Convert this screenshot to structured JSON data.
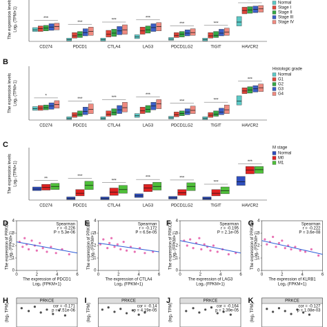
{
  "chart_data": [
    {
      "type": "box",
      "panel": "A",
      "y_label": "The expression levels",
      "y_label2": "Log₂ (TPM+1)",
      "categories": [
        "CD274",
        "PDCD1",
        "CTLA4",
        "LAG3",
        "PDCD1LG2",
        "TIGIT",
        "HAVCR2"
      ],
      "significance": [
        "***",
        "***",
        "***",
        "***",
        "***",
        "***",
        "***"
      ],
      "ylim": [
        0,
        8
      ],
      "series": [
        {
          "name": "Normal",
          "color": "#5cc9c6",
          "values": [
            2.1,
            0.3,
            0.3,
            0.8,
            0.4,
            0.3,
            3.5
          ],
          "q1": [
            1.8,
            0.1,
            0.1,
            0.5,
            0.2,
            0.1,
            2.8
          ],
          "q3": [
            2.5,
            0.6,
            0.6,
            1.2,
            0.7,
            0.6,
            4.5
          ]
        },
        {
          "name": "Stage I",
          "color": "#e0463a",
          "values": [
            2.3,
            1.0,
            1.3,
            1.9,
            1.1,
            1.0,
            5.6
          ],
          "q1": [
            1.8,
            0.6,
            0.8,
            1.3,
            0.7,
            0.6,
            5.0
          ],
          "q3": [
            2.8,
            1.6,
            2.0,
            2.6,
            1.6,
            1.6,
            6.2
          ]
        },
        {
          "name": "Stage II",
          "color": "#35a845",
          "values": [
            2.4,
            1.2,
            1.5,
            2.1,
            1.3,
            1.1,
            5.7
          ],
          "q1": [
            1.9,
            0.7,
            0.9,
            1.5,
            0.8,
            0.7,
            5.1
          ],
          "q3": [
            2.9,
            1.8,
            2.2,
            2.8,
            1.8,
            1.8,
            6.3
          ]
        },
        {
          "name": "Stage III",
          "color": "#3b5fc8",
          "values": [
            2.6,
            1.6,
            1.9,
            2.5,
            1.5,
            1.5,
            5.8
          ],
          "q1": [
            2.0,
            1.0,
            1.2,
            1.8,
            1.0,
            1.0,
            5.2
          ],
          "q3": [
            3.2,
            2.3,
            2.7,
            3.2,
            2.1,
            2.2,
            6.4
          ]
        },
        {
          "name": "Stage IV",
          "color": "#ef8a80",
          "values": [
            2.7,
            1.8,
            2.1,
            2.7,
            1.6,
            1.7,
            5.9
          ],
          "q1": [
            2.1,
            1.1,
            1.3,
            1.9,
            1.1,
            1.1,
            5.3
          ],
          "q3": [
            3.3,
            2.6,
            3.0,
            3.4,
            2.3,
            2.4,
            6.5
          ]
        }
      ]
    },
    {
      "type": "box",
      "panel": "B",
      "y_label": "The expression levels",
      "y_label2": "Log₂ (TPM+1)",
      "legend_title": "Histologic grade",
      "categories": [
        "CD274",
        "PDCD1",
        "CTLA4",
        "LAG3",
        "PDCD1LG2",
        "TIGIT",
        "HAVCR2"
      ],
      "significance": [
        "*",
        "***",
        "***",
        "***",
        "***",
        "***",
        "***"
      ],
      "ylim": [
        0,
        10
      ],
      "series": [
        {
          "name": "Normal",
          "color": "#5cc9c6",
          "values": [
            2.1,
            0.3,
            0.3,
            0.8,
            0.4,
            0.3,
            3.5
          ],
          "q1": [
            1.8,
            0.1,
            0.1,
            0.5,
            0.2,
            0.1,
            2.8
          ],
          "q3": [
            2.5,
            0.6,
            0.6,
            1.2,
            0.7,
            0.6,
            4.5
          ]
        },
        {
          "name": "G1",
          "color": "#e0463a",
          "values": [
            2.2,
            0.9,
            1.1,
            1.7,
            1.0,
            0.9,
            5.4
          ],
          "q1": [
            1.8,
            0.5,
            0.7,
            1.2,
            0.6,
            0.5,
            4.9
          ],
          "q3": [
            2.7,
            1.4,
            1.7,
            2.4,
            1.5,
            1.4,
            6.0
          ]
        },
        {
          "name": "G2",
          "color": "#35a845",
          "values": [
            2.3,
            1.1,
            1.4,
            2.0,
            1.2,
            1.1,
            5.6
          ],
          "q1": [
            1.9,
            0.7,
            0.9,
            1.4,
            0.8,
            0.7,
            5.0
          ],
          "q3": [
            2.8,
            1.7,
            2.1,
            2.7,
            1.7,
            1.7,
            6.2
          ]
        },
        {
          "name": "G3",
          "color": "#3b5fc8",
          "values": [
            2.6,
            1.6,
            1.9,
            2.6,
            1.5,
            1.5,
            5.8
          ],
          "q1": [
            2.0,
            1.0,
            1.2,
            1.9,
            1.0,
            1.0,
            5.2
          ],
          "q3": [
            3.2,
            2.4,
            2.7,
            3.3,
            2.1,
            2.2,
            6.4
          ]
        },
        {
          "name": "G4",
          "color": "#ef8a80",
          "values": [
            2.9,
            2.0,
            2.3,
            3.0,
            1.8,
            1.9,
            6.0
          ],
          "q1": [
            2.2,
            1.2,
            1.5,
            2.1,
            1.2,
            1.2,
            5.3
          ],
          "q3": [
            3.6,
            3.0,
            3.3,
            3.8,
            2.6,
            2.8,
            6.7
          ]
        }
      ]
    },
    {
      "type": "box",
      "panel": "C",
      "y_label": "The expression levels",
      "y_label2": "Log₂ (TPM+1)",
      "legend_title": "M stage",
      "categories": [
        "CD274",
        "PDCD1",
        "CTLA4",
        "LAG3",
        "PDCD1LG2",
        "TIGIT",
        "HAVCR2"
      ],
      "significance": [
        "**",
        "***",
        "***",
        "***",
        "***",
        "***",
        "***"
      ],
      "ylim": [
        0,
        10
      ],
      "series": [
        {
          "name": "Normal",
          "color": "#2f4fbf",
          "values": [
            2.1,
            0.3,
            0.3,
            0.8,
            0.4,
            0.3,
            3.5
          ],
          "q1": [
            1.8,
            0.1,
            0.1,
            0.5,
            0.2,
            0.1,
            2.8
          ],
          "q3": [
            2.5,
            0.6,
            0.6,
            1.2,
            0.7,
            0.6,
            4.5
          ]
        },
        {
          "name": "M0",
          "color": "#e02222",
          "values": [
            2.4,
            1.3,
            1.5,
            2.3,
            1.4,
            1.3,
            5.7
          ],
          "q1": [
            1.9,
            0.8,
            0.9,
            1.6,
            0.9,
            0.8,
            5.0
          ],
          "q3": [
            3.0,
            2.0,
            2.3,
            3.0,
            2.0,
            2.0,
            6.4
          ]
        },
        {
          "name": "M1",
          "color": "#4fbf3a",
          "values": [
            2.6,
            2.8,
            2.0,
            2.6,
            2.6,
            1.8,
            5.8
          ],
          "q1": [
            2.0,
            2.0,
            1.3,
            1.9,
            1.8,
            1.2,
            5.1
          ],
          "q3": [
            3.2,
            3.6,
            2.8,
            3.4,
            3.3,
            2.5,
            6.4
          ]
        }
      ]
    },
    {
      "type": "scatter",
      "panel": "D",
      "stats": [
        "Spearman",
        "r = -0.226",
        "P = 5.3e-06"
      ],
      "x_label": "The expression of PDCD1",
      "x_label2": "Log₂ (FPKM+1)",
      "y_label": "The expression of PRKCE",
      "y_label2": "Log₂ (FPKM+1)",
      "xlim": [
        0,
        6
      ],
      "xticks": [
        0,
        2,
        4,
        6
      ],
      "ylim": [
        0,
        4
      ],
      "yticks": [
        0,
        1,
        2,
        3,
        4
      ],
      "color": "#e0429a",
      "x": [
        0.3,
        0.6,
        0.8,
        1.0,
        1.2,
        1.5,
        1.8,
        2.0,
        2.3,
        2.6,
        3.0,
        3.4,
        3.9,
        4.5,
        5.2
      ],
      "y": [
        2.3,
        1.9,
        2.6,
        2.1,
        1.7,
        2.4,
        2.0,
        1.6,
        2.2,
        1.8,
        1.5,
        1.9,
        1.4,
        1.7,
        1.3
      ],
      "fit": {
        "x": [
          0,
          6
        ],
        "y": [
          2.3,
          1.4
        ]
      }
    },
    {
      "type": "scatter",
      "panel": "E",
      "stats": [
        "Spearman",
        "r = -0.172",
        "P = 6.5e-05"
      ],
      "x_label": "The expression of CTLA4",
      "x_label2": "Log₂ (FPKM+1)",
      "y_label": "The expression of PRKCE",
      "y_label2": "Log₂ (FPKM+1)",
      "xlim": [
        0,
        6
      ],
      "xticks": [
        0,
        2,
        4,
        6
      ],
      "ylim": [
        0,
        4
      ],
      "yticks": [
        0,
        1,
        2,
        3,
        4
      ],
      "color": "#e0429a",
      "x": [
        0.2,
        0.5,
        0.9,
        1.1,
        1.3,
        1.6,
        1.9,
        2.2,
        2.5,
        2.8,
        3.2,
        3.6,
        4.1,
        4.6,
        5.4
      ],
      "y": [
        2.1,
        2.5,
        1.8,
        2.2,
        2.6,
        1.9,
        2.1,
        1.7,
        2.3,
        1.6,
        1.9,
        1.5,
        1.8,
        1.4,
        1.5
      ],
      "fit": {
        "x": [
          0,
          6
        ],
        "y": [
          2.2,
          1.5
        ]
      }
    },
    {
      "type": "scatter",
      "panel": "F",
      "stats": [
        "Spearman",
        "r = -0.195",
        "P = 2.1e-05"
      ],
      "x_label": "The expression of LAG3",
      "x_label2": "Log₂ (FPKM+1)",
      "y_label": "The expression of PRKCE",
      "y_label2": "Log₂ (FPKM+1)",
      "xlim": [
        0,
        6
      ],
      "xticks": [
        0,
        2,
        4,
        6
      ],
      "ylim": [
        0,
        4
      ],
      "yticks": [
        0,
        1,
        2,
        3,
        4
      ],
      "color": "#e0429a",
      "x": [
        0.4,
        0.7,
        1.0,
        1.3,
        1.6,
        1.9,
        2.1,
        2.4,
        2.7,
        3.0,
        3.3,
        3.7,
        4.2,
        4.8,
        5.5
      ],
      "y": [
        2.4,
        2.0,
        2.5,
        1.8,
        2.2,
        2.6,
        1.7,
        2.1,
        1.9,
        1.6,
        2.0,
        1.5,
        1.7,
        1.3,
        1.4
      ],
      "fit": {
        "x": [
          0,
          6
        ],
        "y": [
          2.4,
          1.4
        ]
      }
    },
    {
      "type": "scatter",
      "panel": "G",
      "stats": [
        "Spearman",
        "r = -0.222",
        "P = 3.6e-08"
      ],
      "x_label": "The expression of KLRB1",
      "x_label2": "Log₂ (FPKM+1)",
      "y_label": "The expression of PRKCE",
      "y_label2": "Log₂ (FPKM+1)",
      "xlim": [
        0,
        6
      ],
      "xticks": [
        0,
        2,
        4,
        6
      ],
      "ylim": [
        0,
        4
      ],
      "yticks": [
        0,
        1,
        2,
        3,
        4
      ],
      "color": "#e0429a",
      "x": [
        0.3,
        0.5,
        0.8,
        1.1,
        1.4,
        1.7,
        2.0,
        2.3,
        2.6,
        2.9,
        3.3,
        3.8,
        4.3,
        4.9,
        5.6
      ],
      "y": [
        2.5,
        2.1,
        2.3,
        2.7,
        1.9,
        2.2,
        2.4,
        1.8,
        2.0,
        1.7,
        1.9,
        1.6,
        1.5,
        1.7,
        1.2
      ],
      "fit": {
        "x": [
          0,
          6
        ],
        "y": [
          2.4,
          1.3
        ]
      }
    },
    {
      "type": "scatter",
      "panel": "H",
      "title": "PRKCE",
      "stats": [
        "cor = -0.171",
        "p = 7.51e-06"
      ],
      "y_label": "(log₂ TPM)",
      "xlim": [
        0,
        6
      ],
      "ylim": [
        0,
        4
      ],
      "color": "#111111",
      "x": [
        0.5,
        1.2,
        1.8,
        2.4,
        3.0,
        3.6,
        4.2,
        4.8
      ],
      "y": [
        2.6,
        2.2,
        2.8,
        2.0,
        2.4,
        1.8,
        2.3,
        1.6
      ]
    },
    {
      "type": "scatter",
      "panel": "I",
      "title": "PRKCE",
      "stats": [
        "cor = -0.14",
        "p = 4.19e-05"
      ],
      "y_label": "(log₂ TPM)",
      "xlim": [
        0,
        6
      ],
      "ylim": [
        0,
        4
      ],
      "color": "#111111",
      "x": [
        0.4,
        1.0,
        1.6,
        2.2,
        2.8,
        3.4,
        4.0,
        4.6
      ],
      "y": [
        2.4,
        2.7,
        2.1,
        2.5,
        1.9,
        2.3,
        1.7,
        2.0
      ]
    },
    {
      "type": "scatter",
      "panel": "J",
      "title": "PRKCE",
      "stats": [
        "cor = -0.164",
        "p = 2.39e-05"
      ],
      "y_label": "(log₂ TPM)",
      "xlim": [
        0,
        6
      ],
      "ylim": [
        0,
        4
      ],
      "color": "#111111",
      "x": [
        0.6,
        1.3,
        1.9,
        2.5,
        3.1,
        3.7,
        4.3,
        5.0
      ],
      "y": [
        2.2,
        2.6,
        2.0,
        2.4,
        2.7,
        1.9,
        2.1,
        1.7
      ]
    },
    {
      "type": "scatter",
      "panel": "K",
      "title": "PRKCE",
      "stats": [
        "cor = -0.127",
        "p = 1.08e-03"
      ],
      "y_label": "(log₂ TPM)",
      "xlim": [
        0,
        6
      ],
      "ylim": [
        0,
        4
      ],
      "color": "#111111",
      "x": [
        0.5,
        1.1,
        1.7,
        2.3,
        2.9,
        3.5,
        4.1,
        4.7
      ],
      "y": [
        2.5,
        2.1,
        2.6,
        2.2,
        1.8,
        2.4,
        2.0,
        1.7
      ]
    }
  ]
}
